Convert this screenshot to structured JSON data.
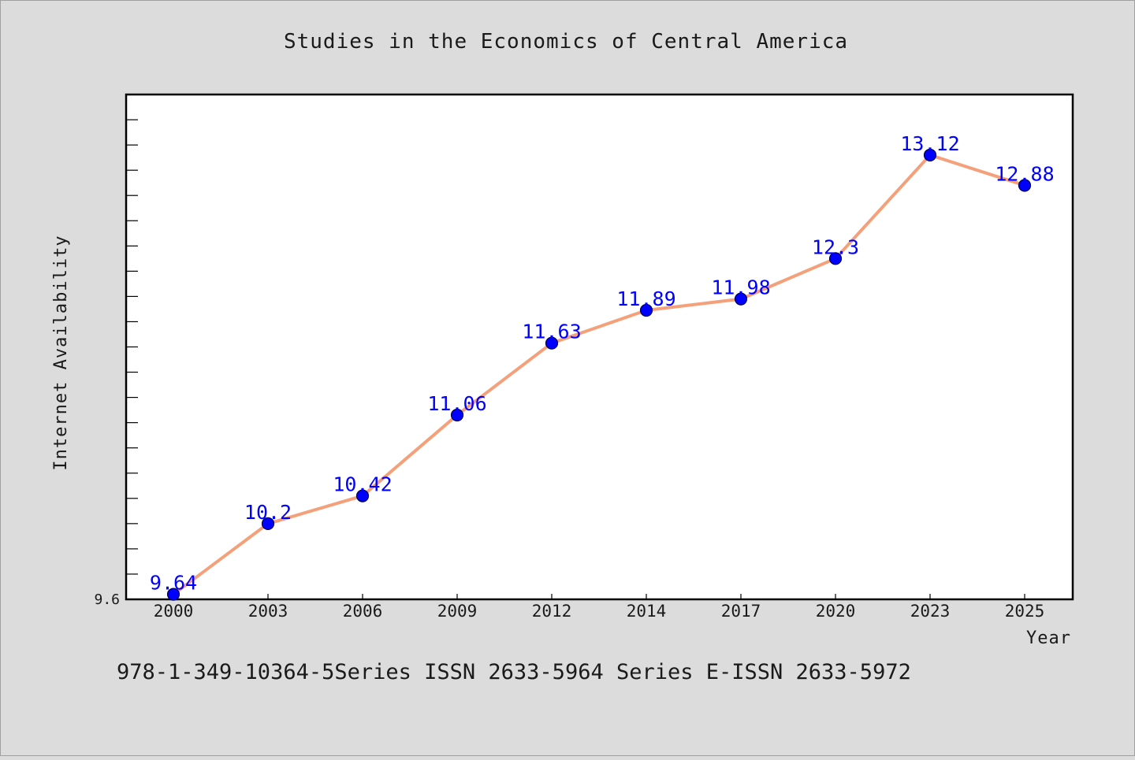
{
  "chart_data": {
    "type": "line",
    "title": "Studies in the Economics of Central America",
    "xlabel": "Year",
    "ylabel": "Internet Availability",
    "categories": [
      "2000",
      "2003",
      "2006",
      "2009",
      "2012",
      "2014",
      "2017",
      "2020",
      "2023",
      "2025"
    ],
    "series": [
      {
        "values": [
          9.64,
          10.2,
          10.42,
          11.06,
          11.63,
          11.89,
          11.98,
          12.3,
          13.12,
          12.88
        ]
      }
    ],
    "data_labels": [
      "9.64",
      "10.2",
      "10.42",
      "11.06",
      "11.63",
      "11.89",
      "11.98",
      "12.3",
      "13.12",
      "12.88"
    ],
    "y_tick_label": "9.6",
    "ylim": [
      9.6,
      13.6
    ],
    "grid": false,
    "legend": "none",
    "footer": "978-1-349-10364-5Series ISSN 2633-5964 Series E-ISSN 2633-5972",
    "colors": {
      "line": "#f4a07a",
      "marker": "#0000ff",
      "data_label": "#0000ff",
      "plot_background": "#ffffff",
      "page_background": "#dcdcdc"
    }
  }
}
